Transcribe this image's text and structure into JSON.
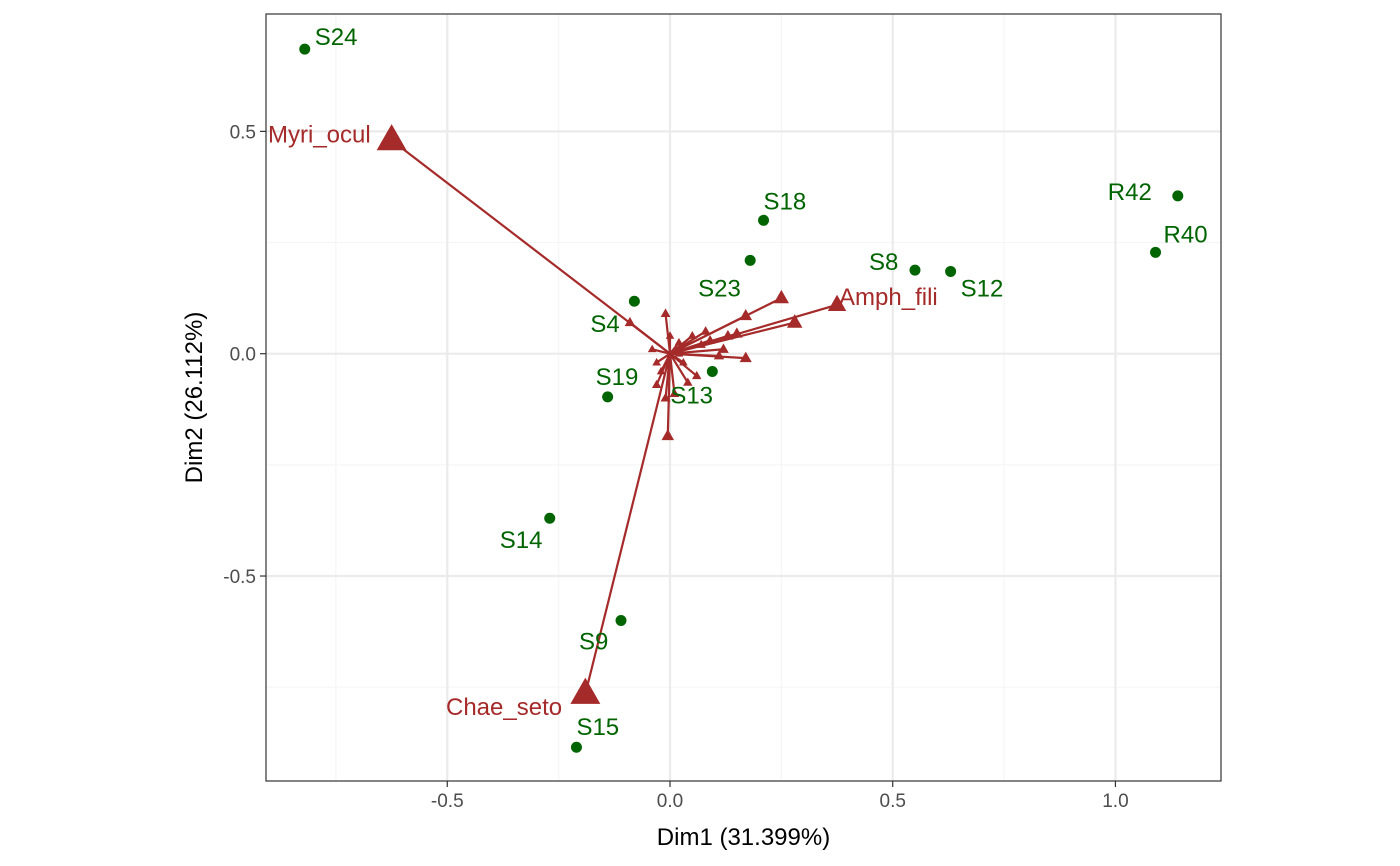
{
  "chart_data": {
    "type": "scatter",
    "title": "",
    "xlabel": "Dim1 (31.399%)",
    "ylabel": "Dim2 (26.112%)",
    "xlim": [
      -0.907,
      1.237
    ],
    "ylim": [
      -0.961,
      0.764
    ],
    "grid": true,
    "x_major_ticks": [
      -0.5,
      0.0,
      0.5,
      1.0
    ],
    "x_tick_labels": [
      "-0.5",
      "0.0",
      "0.5",
      "1.0"
    ],
    "x_minor_ticks": [
      -0.75,
      -0.25,
      0.25,
      0.75
    ],
    "y_major_ticks": [
      -0.5,
      0.0,
      0.5
    ],
    "y_tick_labels": [
      "-0.5",
      "0.0",
      "0.5"
    ],
    "y_minor_ticks": [
      -0.75,
      -0.25,
      0.25
    ],
    "colors": {
      "sites": "#006400",
      "species": "#A52A2A",
      "grid_major": "#EBEBEB",
      "grid_minor": "#F5F5F5",
      "panel_border": "#333333"
    },
    "series": [
      {
        "kind": "sites",
        "marker": "circle",
        "points": [
          {
            "label": "S24",
            "x": -0.82,
            "y": 0.685
          },
          {
            "label": "S18",
            "x": 0.21,
            "y": 0.3
          },
          {
            "label": "S23",
            "x": 0.18,
            "y": 0.21
          },
          {
            "label": "S8",
            "x": 0.55,
            "y": 0.188
          },
          {
            "label": "S12",
            "x": 0.63,
            "y": 0.185
          },
          {
            "label": "R42",
            "x": 1.14,
            "y": 0.355
          },
          {
            "label": "R40",
            "x": 1.09,
            "y": 0.228
          },
          {
            "label": "S4",
            "x": -0.08,
            "y": 0.118
          },
          {
            "label": "S19",
            "x": -0.14,
            "y": -0.097
          },
          {
            "label": "S13",
            "x": 0.095,
            "y": -0.04
          },
          {
            "label": "S14",
            "x": -0.27,
            "y": -0.37
          },
          {
            "label": "S9",
            "x": -0.11,
            "y": -0.6
          },
          {
            "label": "S15",
            "x": -0.21,
            "y": -0.885
          }
        ]
      },
      {
        "kind": "species",
        "marker": "triangle",
        "arrows_from_origin": true,
        "points": [
          {
            "label": "Myri_ocul",
            "x": -0.625,
            "y": 0.48
          },
          {
            "label": "Amph_fili",
            "x": 0.375,
            "y": 0.11
          },
          {
            "label": "Chae_seto",
            "x": -0.19,
            "y": -0.765
          },
          {
            "label": "",
            "x": 0.28,
            "y": 0.07
          },
          {
            "label": "",
            "x": 0.25,
            "y": 0.125
          },
          {
            "label": "",
            "x": 0.17,
            "y": 0.085
          },
          {
            "label": "",
            "x": 0.17,
            "y": -0.01
          },
          {
            "label": "",
            "x": 0.13,
            "y": 0.04
          },
          {
            "label": "",
            "x": 0.15,
            "y": 0.045
          },
          {
            "label": "",
            "x": 0.08,
            "y": 0.05
          },
          {
            "label": "",
            "x": 0.12,
            "y": 0.01
          },
          {
            "label": "",
            "x": 0.11,
            "y": -0.005
          },
          {
            "label": "",
            "x": -0.09,
            "y": 0.07
          },
          {
            "label": "",
            "x": -0.01,
            "y": 0.09
          },
          {
            "label": "",
            "x": 0.02,
            "y": 0.025
          },
          {
            "label": "",
            "x": 0.05,
            "y": 0.04
          },
          {
            "label": "",
            "x": 0.06,
            "y": -0.05
          },
          {
            "label": "",
            "x": 0.04,
            "y": -0.065
          },
          {
            "label": "",
            "x": -0.03,
            "y": -0.07
          },
          {
            "label": "",
            "x": 0.01,
            "y": -0.09
          },
          {
            "label": "",
            "x": -0.01,
            "y": -0.1
          },
          {
            "label": "",
            "x": -0.005,
            "y": -0.185
          },
          {
            "label": "",
            "x": -0.02,
            "y": -0.04
          },
          {
            "label": "",
            "x": 0.03,
            "y": -0.02
          },
          {
            "label": "",
            "x": -0.04,
            "y": 0.01
          },
          {
            "label": "",
            "x": 0.0,
            "y": 0.04
          },
          {
            "label": "",
            "x": 0.07,
            "y": 0.02
          },
          {
            "label": "",
            "x": 0.09,
            "y": 0.03
          },
          {
            "label": "",
            "x": -0.03,
            "y": -0.02
          },
          {
            "label": "",
            "x": 0.02,
            "y": 0.0
          }
        ]
      }
    ]
  }
}
